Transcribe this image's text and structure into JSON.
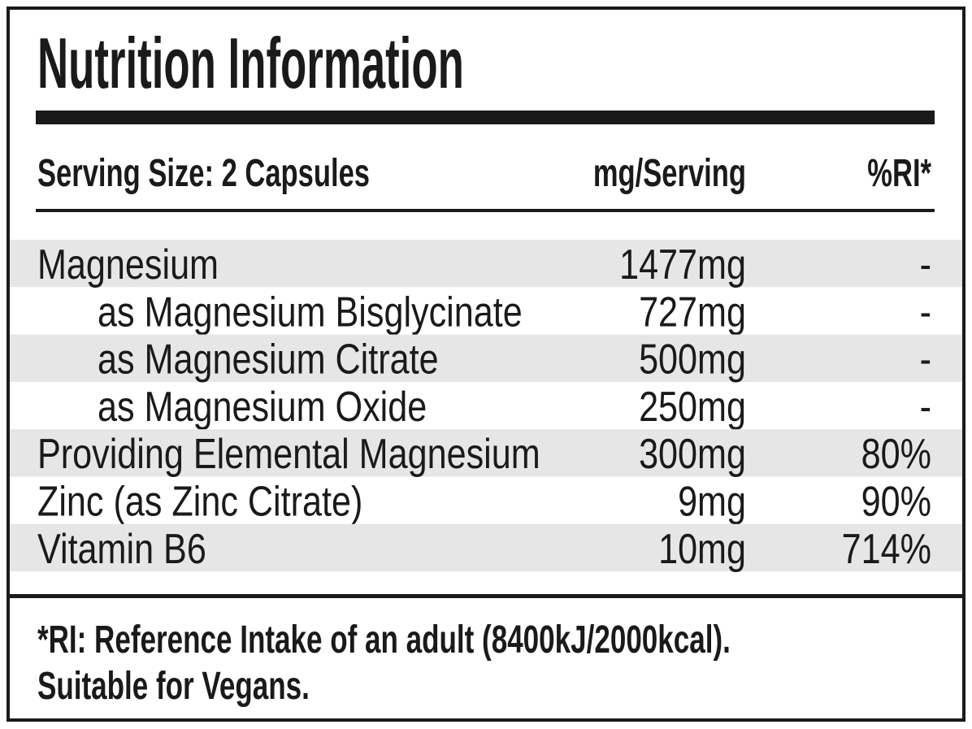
{
  "title": "Nutrition Information",
  "table": {
    "header": [
      "Serving Size: 2 Capsules",
      "mg/Serving",
      "%RI*"
    ],
    "rows": [
      [
        "Magnesium",
        "1477mg",
        "-"
      ],
      [
        "as Magnesium Bisglycinate",
        "727mg",
        "-"
      ],
      [
        "as Magnesium Citrate",
        "500mg",
        "-"
      ],
      [
        "as Magnesium Oxide",
        "250mg",
        "-"
      ],
      [
        "Providing Elemental Magnesium",
        "300mg",
        "80%"
      ],
      [
        "Zinc (as Zinc Citrate)",
        "9mg",
        "90%"
      ],
      [
        "Vitamin B6",
        "10mg",
        "714%"
      ]
    ]
  },
  "footer": [
    "*RI: Reference Intake of an adult (8400kJ/2000kcal).",
    "Suitable for Vegans."
  ]
}
